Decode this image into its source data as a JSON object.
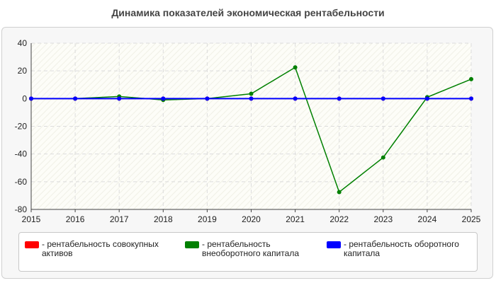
{
  "page": {
    "title": "Динамика показателей экономическая рентабельности"
  },
  "chart_data": {
    "type": "line",
    "title": "Динамика показателей экономическая рентабельности",
    "x": [
      2015,
      2016,
      2017,
      2018,
      2019,
      2020,
      2021,
      2022,
      2023,
      2024,
      2025
    ],
    "xlim": [
      2015,
      2025
    ],
    "ylim": [
      -80,
      40
    ],
    "yticks": [
      40,
      20,
      0,
      -20,
      -40,
      -60,
      -80
    ],
    "grid": true,
    "legend_position": "bottom",
    "series": [
      {
        "name": "- рентабельность совокупных активов",
        "color": "#ff0000",
        "values": [
          0,
          0,
          0,
          0,
          0,
          0,
          0,
          0,
          0,
          0,
          0
        ]
      },
      {
        "name": "- рентабельность внеоборотного капитала",
        "color": "#008000",
        "values": [
          0,
          0,
          1.5,
          -1,
          0,
          3.5,
          22.5,
          -67.5,
          -42.5,
          1,
          14
        ]
      },
      {
        "name": "- рентабельность оборотного капитала",
        "color": "#0000ff",
        "values": [
          0,
          0,
          0,
          0,
          0,
          0,
          0,
          0,
          0,
          0,
          0
        ]
      }
    ]
  },
  "legend": {
    "items": [
      {
        "line1": "- рентабельность совокупных",
        "line2": "активов",
        "color": "#ff0000"
      },
      {
        "line1": "- рентабельность",
        "line2": "внеоборотного капитала",
        "color": "#008000"
      },
      {
        "line1": "- рентабельность оборотного",
        "line2": "капитала",
        "color": "#0000ff"
      }
    ]
  }
}
